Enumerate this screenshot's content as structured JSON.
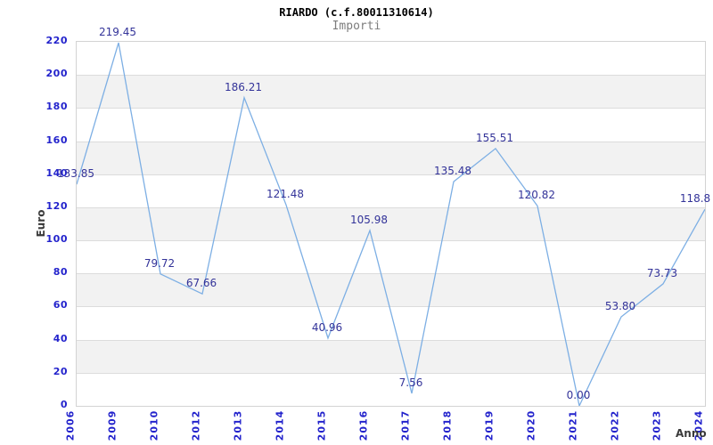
{
  "title": "RIARDO (c.f.80011310614)",
  "subtitle": "Importi",
  "chart_data": {
    "type": "line",
    "title": "RIARDO (c.f.80011310614)",
    "subtitle": "Importi",
    "xlabel": "Anno",
    "ylabel": "Euro",
    "categories": [
      "2006",
      "2009",
      "2010",
      "2012",
      "2013",
      "2014",
      "2015",
      "2016",
      "2017",
      "2018",
      "2019",
      "2020",
      "2021",
      "2022",
      "2023",
      "2024"
    ],
    "values": [
      133.85,
      219.45,
      79.72,
      67.66,
      186.21,
      121.48,
      40.96,
      105.98,
      7.56,
      135.48,
      155.51,
      120.82,
      0.0,
      53.8,
      73.73,
      118.8
    ],
    "point_labels": [
      "133.85",
      "219.45",
      "79.72",
      "67.66",
      "186.21",
      "121.48",
      "40.96",
      "105.98",
      "7.56",
      "135.48",
      "155.51",
      "120.82",
      "0.00",
      "53.80",
      "73.73",
      "118.8"
    ],
    "yticks": [
      "0",
      "20",
      "40",
      "60",
      "80",
      "100",
      "120",
      "140",
      "160",
      "180",
      "200",
      "220"
    ],
    "ylim": [
      0,
      220
    ],
    "ytick_step": 20,
    "grid": true,
    "alternating_bands": true,
    "legend_position": "none",
    "colors": {
      "line": "#7dafe4",
      "tick_label": "#2323cc",
      "point_label": "#333399",
      "band": "#f2f2f2",
      "gridline": "#dcdcdc",
      "plot_border": "#d3d3d3",
      "axis_title": "#3a3a3a",
      "subtitle": "#7d7d7d",
      "title": "#000000"
    }
  }
}
